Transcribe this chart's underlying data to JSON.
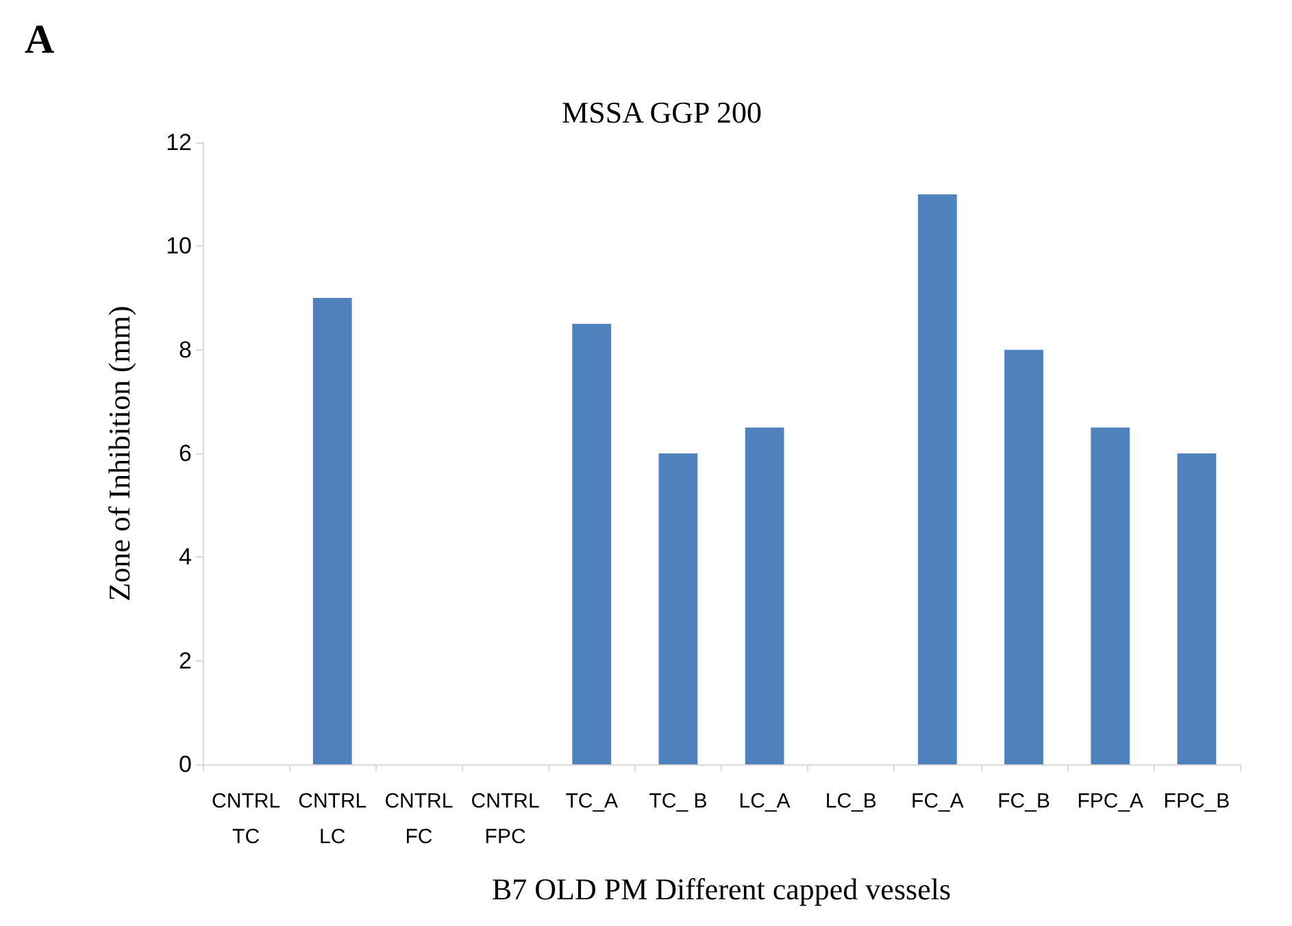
{
  "chart_data": {
    "type": "bar",
    "title": "MSSA GGP 200",
    "xlabel": "B7 OLD PM Different capped vessels",
    "ylabel": "Zone of Inhibition (mm)",
    "annotations": [
      "A"
    ],
    "categories": [
      "CNTRL\nTC",
      "CNTRL\nLC",
      "CNTRL\nFC",
      "CNTRL\nFPC",
      "TC_A",
      "TC_ B",
      "LC_A",
      "LC_B",
      "FC_A",
      "FC_B",
      "FPC_A",
      "FPC_B"
    ],
    "values": [
      0,
      9,
      0,
      0,
      8.5,
      6,
      6.5,
      0,
      11,
      8,
      6.5,
      6
    ],
    "color": "#4f81bd",
    "ylim": [
      0,
      12
    ],
    "yticks": [
      0,
      2,
      4,
      6,
      8,
      10,
      12
    ],
    "grid": false
  }
}
